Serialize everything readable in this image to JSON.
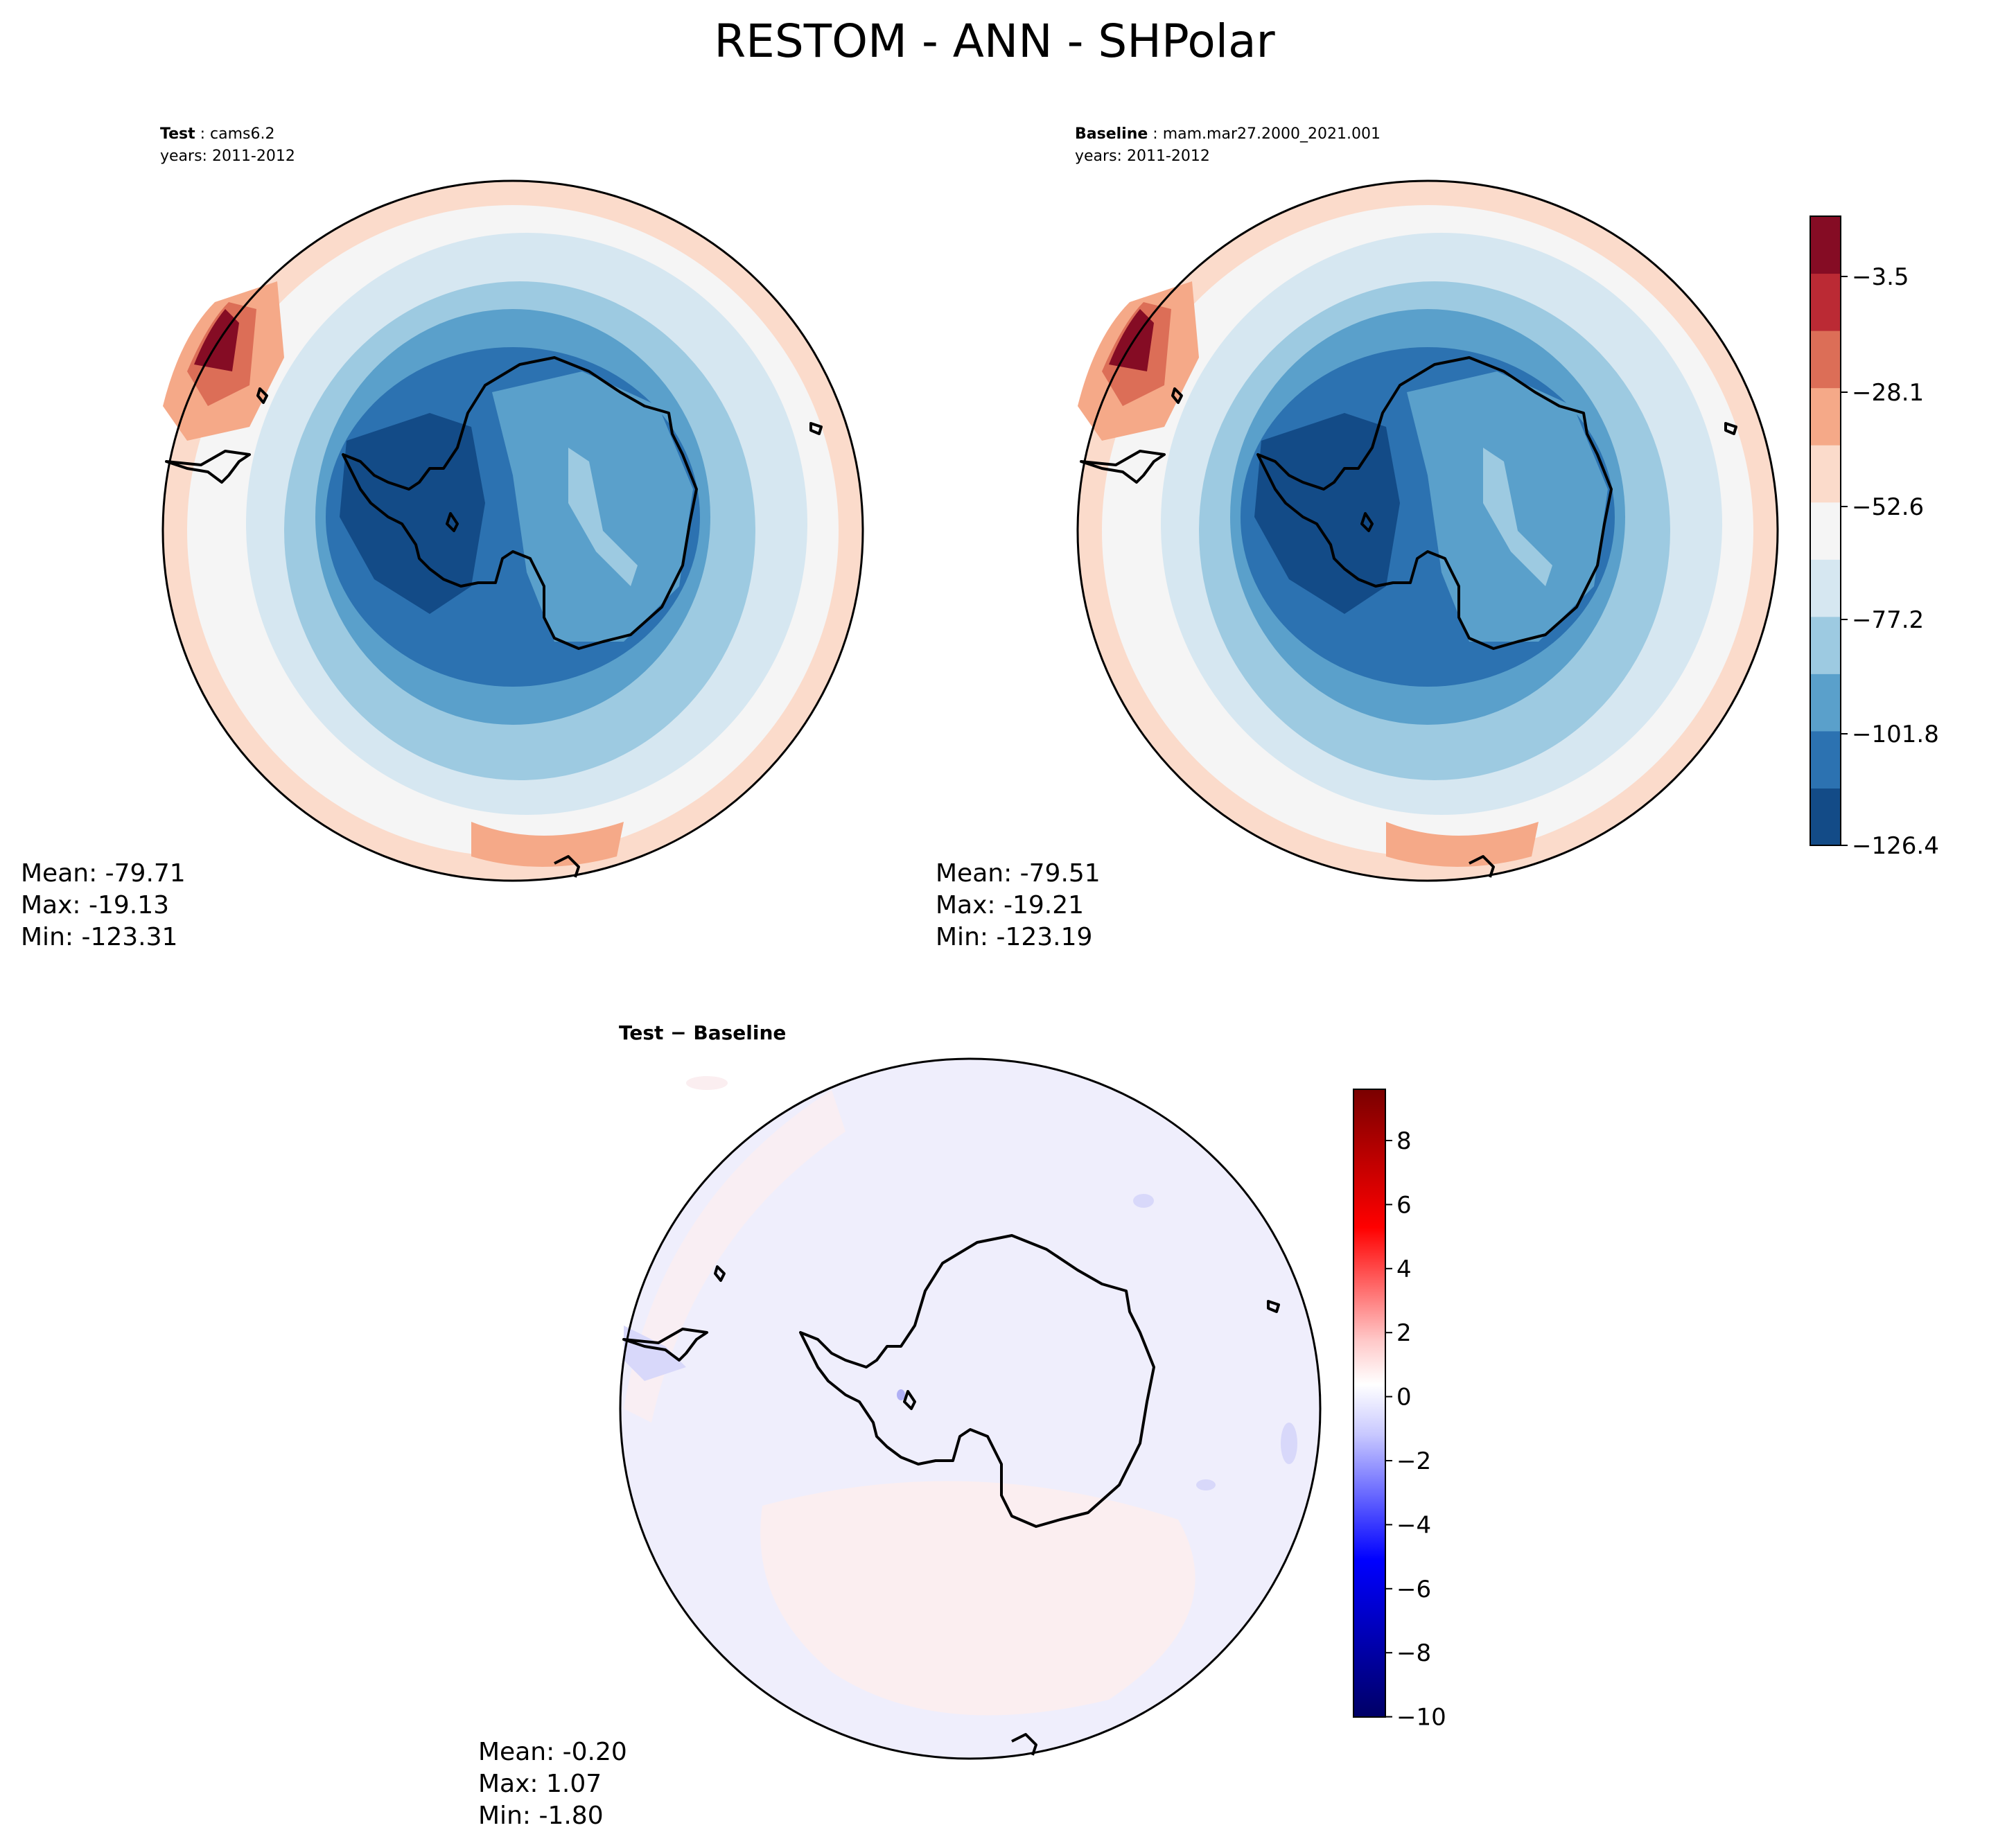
{
  "figure": {
    "title": "RESTOM - ANN - SHPolar"
  },
  "panels": {
    "test": {
      "label": "Test",
      "case": "cams6.2",
      "years": "years: 2011-2012",
      "stats": [
        "Mean: -79.71",
        "Max: -19.13",
        "Min: -123.31"
      ]
    },
    "baseline": {
      "label": "Baseline",
      "case": "mam.mar27.2000_2021.001",
      "years": "years: 2011-2012",
      "stats": [
        "Mean: -79.51",
        "Max: -19.21",
        "Min: -123.19"
      ]
    },
    "diff": {
      "label": "Test − Baseline",
      "stats": [
        "Mean: -0.20",
        "Max:  1.07",
        "Min: -1.80"
      ]
    }
  },
  "colorbars": {
    "main": {
      "ticks": [
        "−3.5",
        "−28.1",
        "−52.6",
        "−77.2",
        "−101.8",
        "−126.4"
      ],
      "colors": [
        "#134b87",
        "#2c72b1",
        "#5aa0cb",
        "#9dcae1",
        "#d6e7f1",
        "#f5f5f5",
        "#fbdbcb",
        "#f5a988",
        "#dc6e57",
        "#bb2a34",
        "#850c24"
      ]
    },
    "diff": {
      "ticks": [
        "8",
        "6",
        "4",
        "2",
        "0",
        "−2",
        "−4",
        "−6",
        "−8",
        "−10"
      ]
    }
  }
}
